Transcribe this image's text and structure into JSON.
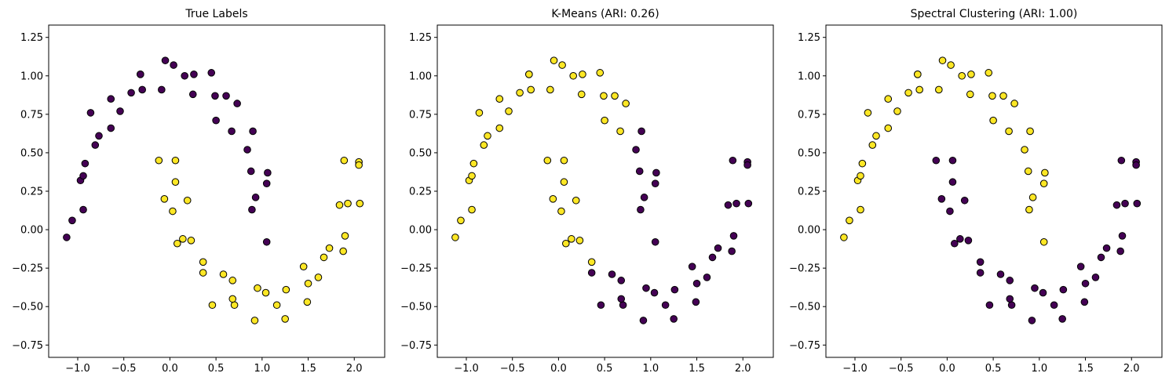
{
  "chart_data": [
    {
      "type": "scatter",
      "title": "True Labels",
      "xlim": [
        -1.315,
        2.33
      ],
      "ylim": [
        -0.83,
        1.33
      ],
      "xticks": [
        {
          "value": -1,
          "label": "−1.0"
        },
        {
          "value": -0.5,
          "label": "−0.5"
        },
        {
          "value": 0,
          "label": "0.0"
        },
        0.5,
        {
          "value": 1,
          "label": "1.0"
        },
        1.5,
        {
          "value": 2,
          "label": "2.0"
        }
      ],
      "yticks": [
        {
          "value": -0.75,
          "label": "−0.75"
        },
        {
          "value": -0.5,
          "label": "−0.50"
        },
        {
          "value": -0.25,
          "label": "−0.25"
        },
        {
          "value": 0,
          "label": "0.00"
        },
        0.25,
        {
          "value": 0.5,
          "label": "0.50"
        },
        0.75,
        {
          "value": 1,
          "label": "1.00"
        },
        1.25
      ],
      "series": [
        {
          "color": "#440154",
          "x": [
            1.05,
            0.89,
            1.05,
            0.93,
            1.06,
            0.84,
            0.88,
            0.9,
            0.67,
            0.73,
            0.5,
            0.61,
            0.45,
            0.49,
            0.26,
            0.25,
            0.04,
            0.16,
            -0.09,
            -0.05,
            -0.32,
            -0.3,
            -0.32,
            -0.54,
            -0.42,
            -0.64,
            -0.64,
            -0.86,
            -0.77,
            -0.92,
            -0.81,
            -0.97,
            -0.94,
            -1.06,
            -0.94,
            -1.12
          ],
          "values": [
            -0.08,
            0.13,
            0.3,
            0.21,
            0.37,
            0.52,
            0.38,
            0.64,
            0.64,
            0.82,
            0.71,
            0.87,
            1.02,
            0.87,
            1.01,
            0.88,
            1.07,
            1.0,
            0.91,
            1.1,
            1.01,
            0.91,
            1.01,
            0.77,
            0.89,
            0.85,
            0.66,
            0.76,
            0.61,
            0.43,
            0.55,
            0.32,
            0.35,
            0.06,
            0.13,
            -0.05
          ]
        },
        {
          "color": "#fde725",
          "x": [
            -0.12,
            0.06,
            -0.06,
            0.06,
            0.03,
            0.19,
            0.08,
            0.23,
            0.14,
            0.36,
            0.36,
            0.58,
            0.46,
            0.68,
            0.7,
            0.68,
            0.95,
            0.92,
            1.16,
            1.04,
            1.25,
            1.26,
            1.49,
            1.45,
            1.61,
            1.5,
            1.73,
            1.67,
            1.9,
            1.88,
            1.84,
            2.06,
            1.93,
            2.05,
            1.89,
            2.05
          ],
          "values": [
            0.45,
            0.45,
            0.2,
            0.31,
            0.12,
            0.19,
            -0.09,
            -0.07,
            -0.06,
            -0.28,
            -0.21,
            -0.29,
            -0.49,
            -0.33,
            -0.49,
            -0.45,
            -0.38,
            -0.59,
            -0.49,
            -0.41,
            -0.58,
            -0.39,
            -0.47,
            -0.24,
            -0.31,
            -0.35,
            -0.12,
            -0.18,
            -0.04,
            -0.14,
            0.16,
            0.17,
            0.17,
            0.44,
            0.45,
            0.42
          ]
        }
      ]
    },
    {
      "type": "scatter",
      "title": "K-Means (ARI: 0.26)",
      "xlim": [
        -1.315,
        2.33
      ],
      "ylim": [
        -0.83,
        1.33
      ],
      "xticks": [
        {
          "value": -1,
          "label": "−1.0"
        },
        {
          "value": -0.5,
          "label": "−0.5"
        },
        {
          "value": 0,
          "label": "0.0"
        },
        0.5,
        {
          "value": 1,
          "label": "1.0"
        },
        1.5,
        {
          "value": 2,
          "label": "2.0"
        }
      ],
      "yticks": [
        {
          "value": -0.75,
          "label": "−0.75"
        },
        {
          "value": -0.5,
          "label": "−0.50"
        },
        {
          "value": -0.25,
          "label": "−0.25"
        },
        {
          "value": 0,
          "label": "0.00"
        },
        0.25,
        {
          "value": 0.5,
          "label": "0.50"
        },
        0.75,
        {
          "value": 1,
          "label": "1.00"
        },
        1.25
      ],
      "series": [
        {
          "color": "#fde725",
          "x": [
            0.67,
            0.73,
            0.5,
            0.61,
            0.45,
            0.49,
            0.26,
            0.25,
            0.04,
            0.16,
            -0.09,
            -0.05,
            -0.32,
            -0.3,
            -0.32,
            -0.54,
            -0.42,
            -0.64,
            -0.64,
            -0.86,
            -0.77,
            -0.92,
            -0.81,
            -0.97,
            -0.94,
            -1.06,
            -0.94,
            -1.12,
            -0.12,
            0.06,
            -0.06,
            0.06,
            0.03,
            0.19,
            0.08,
            0.23,
            0.14,
            0.36
          ],
          "values": [
            0.64,
            0.82,
            0.71,
            0.87,
            1.02,
            0.87,
            1.01,
            0.88,
            1.07,
            1.0,
            0.91,
            1.1,
            1.01,
            0.91,
            1.01,
            0.77,
            0.89,
            0.85,
            0.66,
            0.76,
            0.61,
            0.43,
            0.55,
            0.32,
            0.35,
            0.06,
            0.13,
            -0.05,
            0.45,
            0.45,
            0.2,
            0.31,
            0.12,
            0.19,
            -0.09,
            -0.07,
            -0.06,
            -0.21
          ]
        },
        {
          "color": "#440154",
          "x": [
            1.05,
            0.89,
            1.05,
            0.93,
            1.06,
            0.84,
            0.88,
            0.9,
            0.36,
            0.58,
            0.46,
            0.68,
            0.7,
            0.68,
            0.95,
            0.92,
            1.16,
            1.04,
            1.25,
            1.26,
            1.49,
            1.45,
            1.61,
            1.5,
            1.73,
            1.67,
            1.9,
            1.88,
            1.84,
            2.06,
            1.93,
            2.05,
            1.89,
            2.05
          ],
          "values": [
            -0.08,
            0.13,
            0.3,
            0.21,
            0.37,
            0.52,
            0.38,
            0.64,
            -0.28,
            -0.29,
            -0.49,
            -0.33,
            -0.49,
            -0.45,
            -0.38,
            -0.59,
            -0.49,
            -0.41,
            -0.58,
            -0.39,
            -0.47,
            -0.24,
            -0.31,
            -0.35,
            -0.12,
            -0.18,
            -0.04,
            -0.14,
            0.16,
            0.17,
            0.17,
            0.44,
            0.45,
            0.42
          ]
        }
      ]
    },
    {
      "type": "scatter",
      "title": "Spectral Clustering (ARI: 1.00)",
      "xlim": [
        -1.315,
        2.33
      ],
      "ylim": [
        -0.83,
        1.33
      ],
      "xticks": [
        {
          "value": -1,
          "label": "−1.0"
        },
        {
          "value": -0.5,
          "label": "−0.5"
        },
        {
          "value": 0,
          "label": "0.0"
        },
        0.5,
        {
          "value": 1,
          "label": "1.0"
        },
        1.5,
        {
          "value": 2,
          "label": "2.0"
        }
      ],
      "yticks": [
        {
          "value": -0.75,
          "label": "−0.75"
        },
        {
          "value": -0.5,
          "label": "−0.50"
        },
        {
          "value": -0.25,
          "label": "−0.25"
        },
        {
          "value": 0,
          "label": "0.00"
        },
        0.25,
        {
          "value": 0.5,
          "label": "0.50"
        },
        0.75,
        {
          "value": 1,
          "label": "1.00"
        },
        1.25
      ],
      "series": [
        {
          "color": "#fde725",
          "x": [
            1.05,
            0.89,
            1.05,
            0.93,
            1.06,
            0.84,
            0.88,
            0.9,
            0.67,
            0.73,
            0.5,
            0.61,
            0.45,
            0.49,
            0.26,
            0.25,
            0.04,
            0.16,
            -0.09,
            -0.05,
            -0.32,
            -0.3,
            -0.32,
            -0.54,
            -0.42,
            -0.64,
            -0.64,
            -0.86,
            -0.77,
            -0.92,
            -0.81,
            -0.97,
            -0.94,
            -1.06,
            -0.94,
            -1.12
          ],
          "values": [
            -0.08,
            0.13,
            0.3,
            0.21,
            0.37,
            0.52,
            0.38,
            0.64,
            0.64,
            0.82,
            0.71,
            0.87,
            1.02,
            0.87,
            1.01,
            0.88,
            1.07,
            1.0,
            0.91,
            1.1,
            1.01,
            0.91,
            1.01,
            0.77,
            0.89,
            0.85,
            0.66,
            0.76,
            0.61,
            0.43,
            0.55,
            0.32,
            0.35,
            0.06,
            0.13,
            -0.05
          ]
        },
        {
          "color": "#440154",
          "x": [
            -0.12,
            0.06,
            -0.06,
            0.06,
            0.03,
            0.19,
            0.08,
            0.23,
            0.14,
            0.36,
            0.36,
            0.58,
            0.46,
            0.68,
            0.7,
            0.68,
            0.95,
            0.92,
            1.16,
            1.04,
            1.25,
            1.26,
            1.49,
            1.45,
            1.61,
            1.5,
            1.73,
            1.67,
            1.9,
            1.88,
            1.84,
            2.06,
            1.93,
            2.05,
            1.89,
            2.05
          ],
          "values": [
            0.45,
            0.45,
            0.2,
            0.31,
            0.12,
            0.19,
            -0.09,
            -0.07,
            -0.06,
            -0.28,
            -0.21,
            -0.29,
            -0.49,
            -0.33,
            -0.49,
            -0.45,
            -0.38,
            -0.59,
            -0.49,
            -0.41,
            -0.58,
            -0.39,
            -0.47,
            -0.24,
            -0.31,
            -0.35,
            -0.12,
            -0.18,
            -0.04,
            -0.14,
            0.16,
            0.17,
            0.17,
            0.44,
            0.45,
            0.42
          ]
        }
      ]
    }
  ]
}
